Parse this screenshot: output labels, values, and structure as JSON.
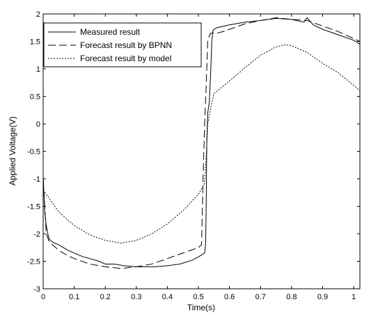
{
  "chart_data": {
    "type": "line",
    "title": "",
    "xlabel": "Time(s)",
    "ylabel": "Applied Voltage(V)",
    "xlim": [
      0,
      1.02
    ],
    "ylim": [
      -3,
      2
    ],
    "xticks": [
      0,
      0.1,
      0.2,
      0.3,
      0.4,
      0.5,
      0.6,
      0.7,
      0.8,
      0.9,
      1
    ],
    "xtick_labels": [
      "0",
      "0.1",
      "0.2",
      "0.3",
      "0.4",
      "0.5",
      "0.6",
      "0.7",
      "0.8",
      "0.9",
      "1"
    ],
    "yticks": [
      -3,
      -2.5,
      -2,
      -1.5,
      -1,
      -0.5,
      0,
      0.5,
      1,
      1.5,
      2
    ],
    "ytick_labels": [
      "-3",
      "-2.5",
      "-2",
      "-1.5",
      "-1",
      "-0.5",
      "0",
      "0.5",
      "1",
      "1.5",
      "2"
    ],
    "grid": false,
    "legend_position": "top-left",
    "series": [
      {
        "name": "Measured result",
        "style": "solid",
        "color": "#000000",
        "points": [
          [
            0,
            -0.95
          ],
          [
            0.005,
            -1.6
          ],
          [
            0.01,
            -1.85
          ],
          [
            0.015,
            -2.0
          ],
          [
            0.02,
            -2.1
          ],
          [
            0.03,
            -2.15
          ],
          [
            0.05,
            -2.2
          ],
          [
            0.08,
            -2.3
          ],
          [
            0.1,
            -2.35
          ],
          [
            0.13,
            -2.42
          ],
          [
            0.15,
            -2.45
          ],
          [
            0.18,
            -2.5
          ],
          [
            0.2,
            -2.55
          ],
          [
            0.23,
            -2.55
          ],
          [
            0.26,
            -2.58
          ],
          [
            0.3,
            -2.6
          ],
          [
            0.33,
            -2.6
          ],
          [
            0.36,
            -2.6
          ],
          [
            0.4,
            -2.58
          ],
          [
            0.44,
            -2.55
          ],
          [
            0.48,
            -2.48
          ],
          [
            0.5,
            -2.42
          ],
          [
            0.52,
            -2.35
          ],
          [
            0.523,
            -2.2
          ],
          [
            0.525,
            -1.5
          ],
          [
            0.527,
            -0.3
          ],
          [
            0.53,
            0.2
          ],
          [
            0.535,
            0.4
          ],
          [
            0.54,
            1.0
          ],
          [
            0.543,
            1.5
          ],
          [
            0.547,
            1.7
          ],
          [
            0.55,
            1.72
          ],
          [
            0.56,
            1.75
          ],
          [
            0.6,
            1.8
          ],
          [
            0.65,
            1.85
          ],
          [
            0.7,
            1.88
          ],
          [
            0.75,
            1.92
          ],
          [
            0.8,
            1.9
          ],
          [
            0.84,
            1.85
          ],
          [
            0.85,
            1.93
          ],
          [
            0.87,
            1.8
          ],
          [
            0.9,
            1.72
          ],
          [
            0.95,
            1.62
          ],
          [
            1.0,
            1.52
          ],
          [
            1.02,
            1.45
          ]
        ]
      },
      {
        "name": "Forecast result by BPNN",
        "style": "dashed",
        "color": "#000000",
        "points": [
          [
            0,
            -1.0
          ],
          [
            0.005,
            -1.5
          ],
          [
            0.01,
            -2.0
          ],
          [
            0.02,
            -2.15
          ],
          [
            0.03,
            -2.2
          ],
          [
            0.05,
            -2.3
          ],
          [
            0.08,
            -2.4
          ],
          [
            0.1,
            -2.45
          ],
          [
            0.15,
            -2.55
          ],
          [
            0.2,
            -2.6
          ],
          [
            0.25,
            -2.63
          ],
          [
            0.3,
            -2.6
          ],
          [
            0.35,
            -2.55
          ],
          [
            0.4,
            -2.45
          ],
          [
            0.45,
            -2.35
          ],
          [
            0.5,
            -2.25
          ],
          [
            0.51,
            -2.2
          ],
          [
            0.515,
            -1.0
          ],
          [
            0.52,
            0.0
          ],
          [
            0.525,
            0.7
          ],
          [
            0.53,
            1.5
          ],
          [
            0.535,
            1.6
          ],
          [
            0.54,
            1.65
          ],
          [
            0.56,
            1.65
          ],
          [
            0.58,
            1.68
          ],
          [
            0.6,
            1.72
          ],
          [
            0.65,
            1.82
          ],
          [
            0.7,
            1.88
          ],
          [
            0.75,
            1.93
          ],
          [
            0.8,
            1.9
          ],
          [
            0.85,
            1.88
          ],
          [
            0.9,
            1.78
          ],
          [
            0.95,
            1.68
          ],
          [
            1.0,
            1.55
          ],
          [
            1.02,
            1.5
          ]
        ]
      },
      {
        "name": "Forecast result by model",
        "style": "dotted",
        "color": "#000000",
        "points": [
          [
            0,
            -1.2
          ],
          [
            0.05,
            -1.6
          ],
          [
            0.1,
            -1.85
          ],
          [
            0.15,
            -2.02
          ],
          [
            0.2,
            -2.12
          ],
          [
            0.25,
            -2.17
          ],
          [
            0.3,
            -2.12
          ],
          [
            0.35,
            -2.0
          ],
          [
            0.4,
            -1.82
          ],
          [
            0.45,
            -1.58
          ],
          [
            0.5,
            -1.28
          ],
          [
            0.52,
            -1.08
          ],
          [
            0.525,
            -0.6
          ],
          [
            0.53,
            0.0
          ],
          [
            0.54,
            0.3
          ],
          [
            0.55,
            0.55
          ],
          [
            0.6,
            0.78
          ],
          [
            0.65,
            1.02
          ],
          [
            0.7,
            1.25
          ],
          [
            0.75,
            1.4
          ],
          [
            0.78,
            1.44
          ],
          [
            0.8,
            1.42
          ],
          [
            0.85,
            1.3
          ],
          [
            0.9,
            1.1
          ],
          [
            0.95,
            0.93
          ],
          [
            1.0,
            0.7
          ],
          [
            1.02,
            0.6
          ]
        ]
      }
    ]
  }
}
